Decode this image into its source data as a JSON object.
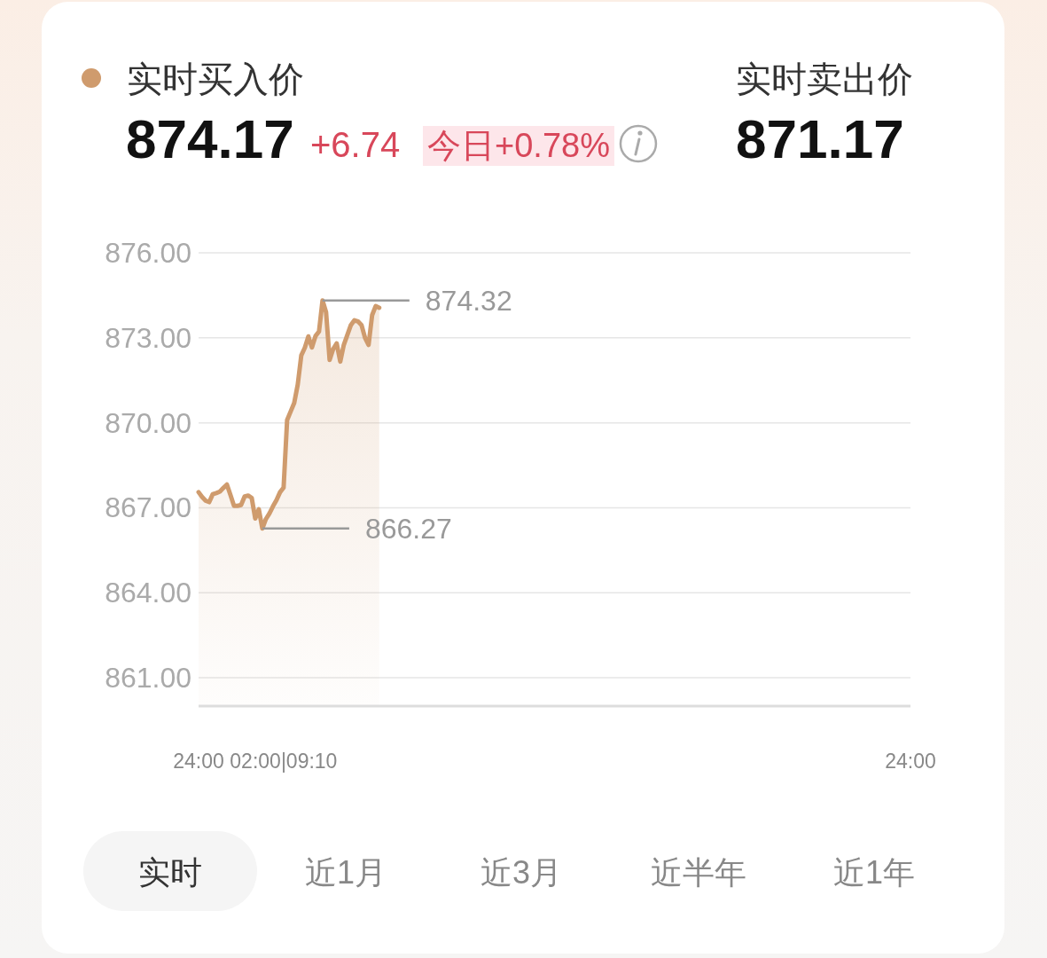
{
  "chart_data": {
    "type": "area",
    "categories": [
      "24:00",
      null,
      null,
      null,
      null,
      null,
      null,
      null,
      null,
      null,
      null,
      null,
      null,
      null,
      null,
      null,
      null,
      null,
      null,
      null,
      null,
      null,
      null,
      null,
      "02:00|09:10",
      null,
      null,
      null,
      null,
      null,
      null,
      null,
      null,
      null,
      null,
      null,
      null,
      null,
      null,
      null,
      null,
      null,
      null,
      null,
      null,
      null,
      null,
      null,
      null,
      null,
      null,
      null,
      null,
      null,
      null,
      null,
      null,
      null,
      null,
      null,
      null,
      null,
      null,
      null,
      null,
      null,
      null,
      null,
      null,
      null,
      null,
      null,
      null,
      null,
      null,
      null,
      null,
      null,
      null,
      null,
      null,
      null,
      null,
      null,
      null,
      null,
      null,
      null,
      null,
      null,
      null,
      null,
      null,
      null,
      null,
      null,
      null,
      null,
      null,
      null,
      null,
      null,
      null,
      null,
      null,
      null,
      null,
      null,
      null,
      null,
      null,
      null,
      null,
      null,
      null,
      null,
      null,
      null,
      null,
      null,
      null,
      null,
      null,
      null,
      null,
      null,
      null,
      null,
      null,
      null,
      null,
      null,
      null,
      null,
      null,
      null,
      null,
      null,
      null,
      null,
      null,
      null,
      null,
      null,
      null,
      null,
      null,
      null,
      null,
      null,
      null,
      null,
      null,
      null,
      null,
      null,
      null,
      null,
      null,
      null,
      null,
      null,
      null,
      null,
      null,
      null,
      null,
      null,
      null,
      null,
      null,
      null,
      null,
      null,
      null,
      null,
      null,
      null,
      null,
      null,
      null,
      null,
      null,
      null,
      null,
      null,
      null,
      null,
      null,
      null,
      null,
      null,
      null,
      null,
      null,
      null,
      null,
      null,
      null,
      null,
      null,
      "24:00"
    ],
    "series": [
      {
        "name": "实时买入价",
        "color": "#cf9b6d",
        "values": [
          867.55,
          867.38,
          867.25,
          867.2,
          867.48,
          867.52,
          867.57,
          867.7,
          867.82,
          867.45,
          867.07,
          867.07,
          867.1,
          867.4,
          867.43,
          867.35,
          866.62,
          866.95,
          866.27,
          866.6,
          866.8,
          867.05,
          867.27,
          867.55,
          867.71,
          870.1,
          870.4,
          870.7,
          871.35,
          872.38,
          872.65,
          873.05,
          872.66,
          873.06,
          873.22,
          874.32,
          873.9,
          872.22,
          872.6,
          872.8,
          872.16,
          872.75,
          873.1,
          873.45,
          873.62,
          873.58,
          873.45,
          873.0,
          872.75,
          873.8,
          874.12,
          874.06,
          null,
          null,
          null,
          null,
          null,
          null,
          null,
          null,
          null,
          null,
          null,
          null,
          null,
          null,
          null,
          null,
          null,
          null,
          null,
          null,
          null,
          null,
          null,
          null,
          null,
          null,
          null,
          null,
          null,
          null,
          null,
          null,
          null,
          null,
          null,
          null,
          null,
          null,
          null,
          null,
          null,
          null,
          null,
          null,
          null,
          null,
          null,
          null,
          null,
          null,
          null,
          null,
          null,
          null,
          null,
          null,
          null,
          null,
          null,
          null,
          null,
          null,
          null,
          null,
          null,
          null,
          null,
          null,
          null,
          null,
          null,
          null,
          null,
          null,
          null,
          null,
          null,
          null,
          null,
          null,
          null,
          null,
          null,
          null,
          null,
          null,
          null,
          null,
          null,
          null,
          null,
          null,
          null,
          null,
          null,
          null,
          null,
          null,
          null,
          null,
          null,
          null,
          null,
          null,
          null,
          null,
          null,
          null,
          null,
          null,
          null,
          null,
          null,
          null,
          null,
          null,
          null,
          null,
          null,
          null,
          null,
          null,
          null,
          null,
          null,
          null,
          null,
          null,
          null,
          null,
          null,
          null,
          null,
          null,
          null,
          null,
          null,
          null,
          null,
          null,
          null,
          null,
          null,
          null,
          null,
          null,
          null,
          null,
          null,
          null
        ]
      }
    ],
    "ylim": [
      860,
      876
    ],
    "yticks": [
      {
        "value": 861,
        "label": "861.00"
      },
      {
        "value": 864,
        "label": "864.00"
      },
      {
        "value": 867,
        "label": "867.00"
      },
      {
        "value": 870,
        "label": "870.00"
      },
      {
        "value": 873,
        "label": "873.00"
      },
      {
        "value": 876,
        "label": "876.00"
      }
    ],
    "grid": "y",
    "legend": "top left",
    "annotations": [
      "874.17",
      "+6.74",
      "今日+0.78%",
      "实时卖出价",
      "871.17",
      "实时",
      "近1月",
      "近3月",
      "近半年",
      "近1年",
      "874.32",
      "866.27"
    ]
  }
}
